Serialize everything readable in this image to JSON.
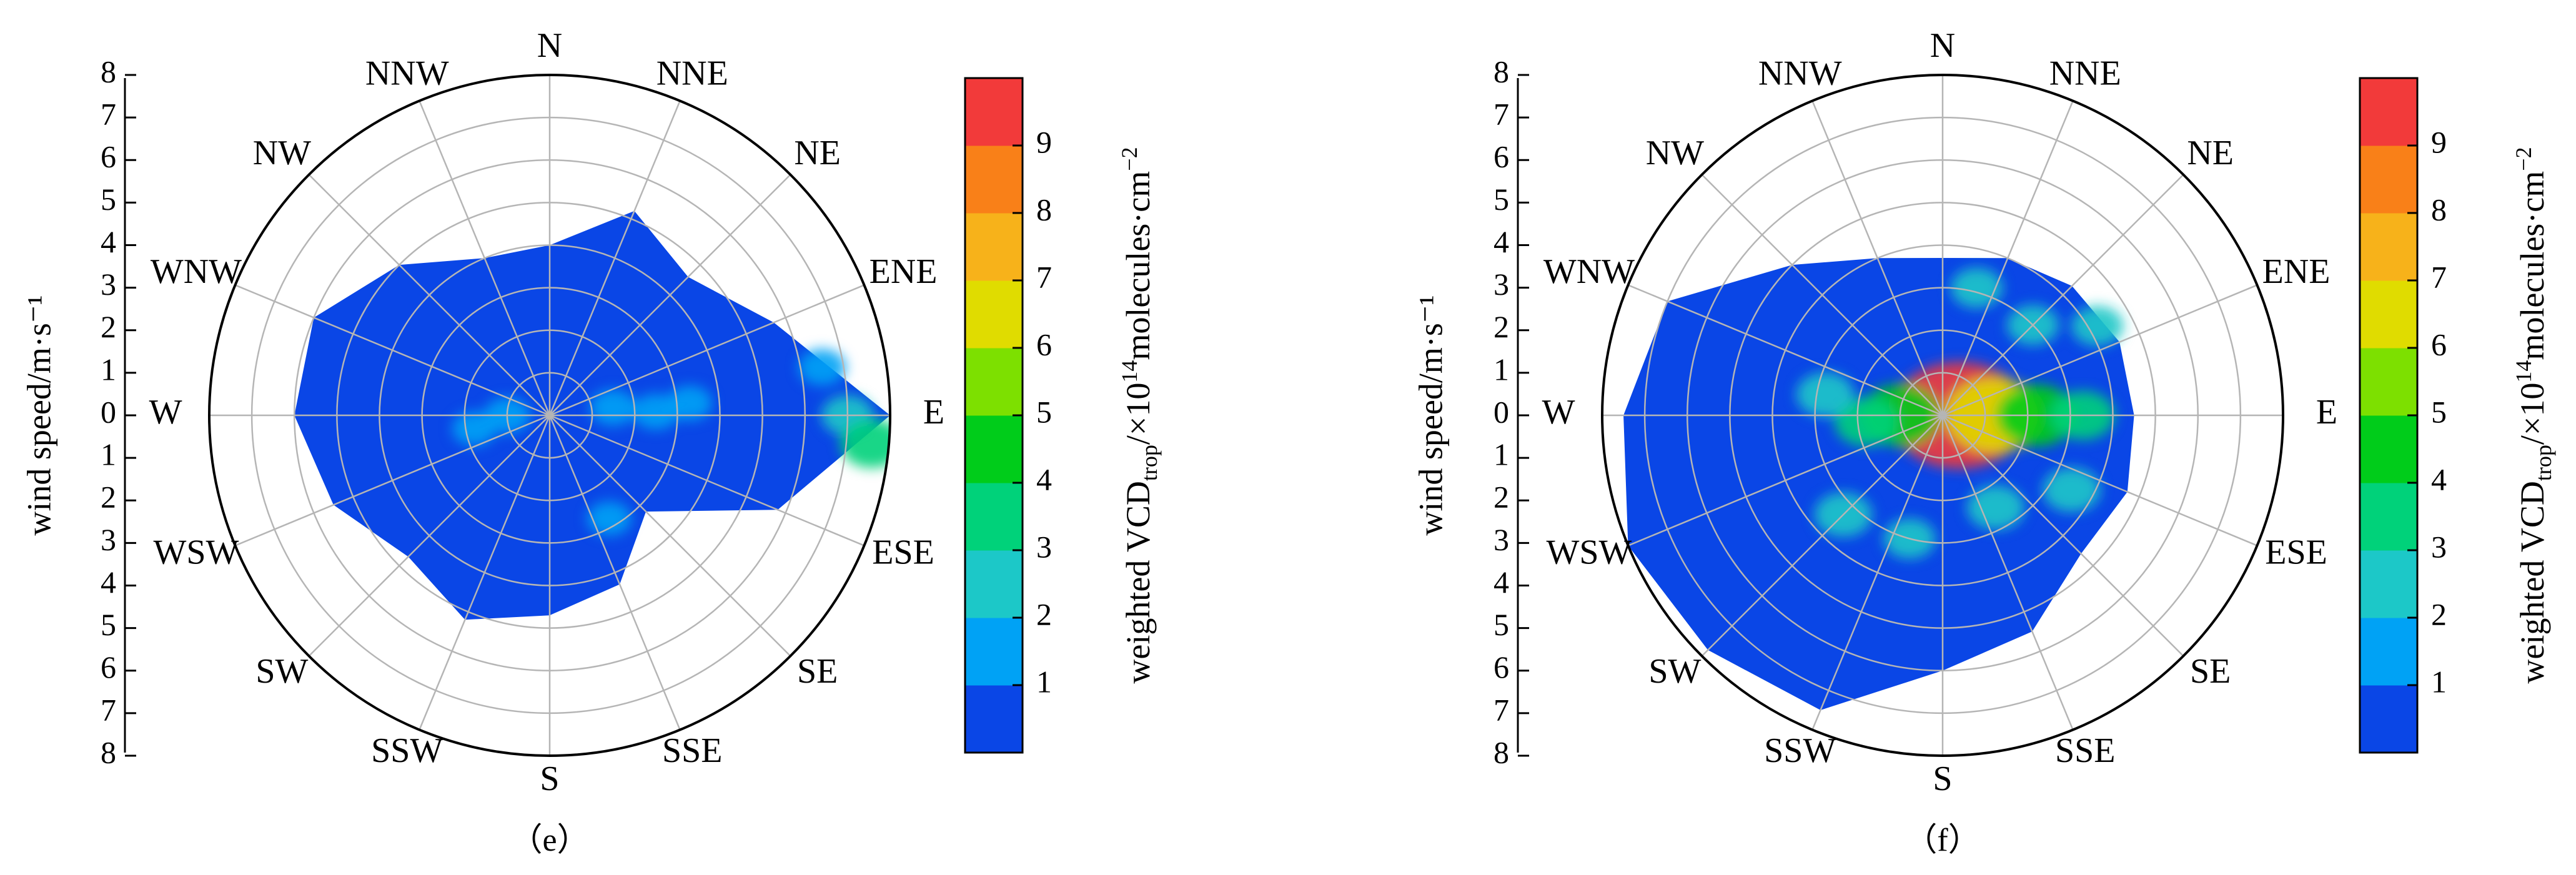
{
  "figure": {
    "panels": [
      {
        "id": "e",
        "caption": "（e）"
      },
      {
        "id": "f",
        "caption": "（f）"
      }
    ]
  },
  "chart_data": [
    {
      "type": "polar-contour",
      "panel": "（e）",
      "directions": [
        "N",
        "NNE",
        "NE",
        "ENE",
        "E",
        "ESE",
        "SE",
        "SSE",
        "S",
        "SSW",
        "SW",
        "WSW",
        "W",
        "WNW",
        "NW",
        "NNW"
      ],
      "radial_axis": {
        "label": "wind speed/m·s⁻¹",
        "range": [
          0,
          8
        ],
        "ticks": [
          0,
          1,
          2,
          3,
          4,
          5,
          6,
          7,
          8
        ]
      },
      "colorbar": {
        "label": "weighted VCDtrop/×10¹⁴molecules·cm⁻²",
        "label_parts": [
          "weighted VCD",
          "trop",
          "/×10",
          "14",
          "molecules·cm",
          "−2"
        ],
        "ticks": [
          1,
          2,
          3,
          4,
          5,
          6,
          7,
          8,
          9
        ],
        "range": [
          0,
          10
        ],
        "colors": [
          "#0a46e6",
          "#00a2f5",
          "#1cc8c8",
          "#00d27a",
          "#00cc1a",
          "#7de000",
          "#e0dc00",
          "#f7b21a",
          "#f98018",
          "#f23a3a"
        ]
      },
      "coverage": [
        {
          "direction_deg": 0,
          "speed": 4.0
        },
        {
          "direction_deg": 22.5,
          "speed": 5.2
        },
        {
          "direction_deg": 45,
          "speed": 4.6
        },
        {
          "direction_deg": 67.5,
          "speed": 5.7
        },
        {
          "direction_deg": 90,
          "speed": 8.0
        },
        {
          "direction_deg": 112.5,
          "speed": 5.8
        },
        {
          "direction_deg": 135,
          "speed": 3.2
        },
        {
          "direction_deg": 157.5,
          "speed": 4.3
        },
        {
          "direction_deg": 180,
          "speed": 4.7
        },
        {
          "direction_deg": 202.5,
          "speed": 5.2
        },
        {
          "direction_deg": 225,
          "speed": 4.7
        },
        {
          "direction_deg": 247.5,
          "speed": 5.5
        },
        {
          "direction_deg": 270,
          "speed": 6.0
        },
        {
          "direction_deg": 292.5,
          "speed": 6.0
        },
        {
          "direction_deg": 315,
          "speed": 5.0
        },
        {
          "direction_deg": 337.5,
          "speed": 4.0
        }
      ],
      "hotspots": [
        {
          "direction_deg": 90,
          "speed": 7.0,
          "value": 2.0
        },
        {
          "direction_deg": 95,
          "speed": 7.6,
          "value": 3.0
        },
        {
          "direction_deg": 80,
          "speed": 6.5,
          "value": 1.6
        },
        {
          "direction_deg": 83,
          "speed": 1.5,
          "value": 1.5
        },
        {
          "direction_deg": 88,
          "speed": 2.5,
          "value": 1.5
        },
        {
          "direction_deg": 85,
          "speed": 3.3,
          "value": 1.4
        },
        {
          "direction_deg": 270,
          "speed": 1.0,
          "value": 1.5
        },
        {
          "direction_deg": 260,
          "speed": 1.8,
          "value": 1.3
        },
        {
          "direction_deg": 150,
          "speed": 2.8,
          "value": 1.3
        }
      ]
    },
    {
      "type": "polar-contour",
      "panel": "（f）",
      "directions": [
        "N",
        "NNE",
        "NE",
        "ENE",
        "E",
        "ESE",
        "SE",
        "SSE",
        "S",
        "SSW",
        "SW",
        "WSW",
        "W",
        "WNW",
        "NW",
        "NNW"
      ],
      "radial_axis": {
        "label": "wind speed/m·s⁻¹",
        "range": [
          0,
          8
        ],
        "ticks": [
          0,
          1,
          2,
          3,
          4,
          5,
          6,
          7,
          8
        ]
      },
      "colorbar": {
        "label": "weighted VCDtrop/×10¹⁴molecules·cm⁻²",
        "label_parts": [
          "weighted VCD",
          "trop",
          "/×10",
          "14",
          "molecules·cm",
          "−2"
        ],
        "ticks": [
          1,
          2,
          3,
          4,
          5,
          6,
          7,
          8,
          9
        ],
        "range": [
          0,
          10
        ],
        "colors": [
          "#0a46e6",
          "#00a2f5",
          "#1cc8c8",
          "#00d27a",
          "#00cc1a",
          "#7de000",
          "#e0dc00",
          "#f7b21a",
          "#f98018",
          "#f23a3a"
        ]
      },
      "coverage": [
        {
          "direction_deg": 0,
          "speed": 3.7
        },
        {
          "direction_deg": 22.5,
          "speed": 4.0
        },
        {
          "direction_deg": 45,
          "speed": 4.3
        },
        {
          "direction_deg": 67.5,
          "speed": 4.5
        },
        {
          "direction_deg": 90,
          "speed": 4.5
        },
        {
          "direction_deg": 112.5,
          "speed": 4.7
        },
        {
          "direction_deg": 135,
          "speed": 4.6
        },
        {
          "direction_deg": 157.5,
          "speed": 5.5
        },
        {
          "direction_deg": 180,
          "speed": 6.0
        },
        {
          "direction_deg": 202.5,
          "speed": 7.5
        },
        {
          "direction_deg": 225,
          "speed": 7.8
        },
        {
          "direction_deg": 247.5,
          "speed": 8.0
        },
        {
          "direction_deg": 270,
          "speed": 7.5
        },
        {
          "direction_deg": 292.5,
          "speed": 7.0
        },
        {
          "direction_deg": 315,
          "speed": 5.0
        },
        {
          "direction_deg": 337.5,
          "speed": 4.0
        }
      ],
      "hotspots": [
        {
          "direction_deg": 90,
          "speed": 0.4,
          "value": 9.6
        },
        {
          "direction_deg": 90,
          "speed": 1.2,
          "value": 6.0
        },
        {
          "direction_deg": 90,
          "speed": 2.2,
          "value": 4.5
        },
        {
          "direction_deg": 90,
          "speed": 3.3,
          "value": 3.0
        },
        {
          "direction_deg": 270,
          "speed": 1.0,
          "value": 4.5
        },
        {
          "direction_deg": 265,
          "speed": 1.8,
          "value": 3.0
        },
        {
          "direction_deg": 280,
          "speed": 2.8,
          "value": 2.5
        },
        {
          "direction_deg": 120,
          "speed": 3.5,
          "value": 2.5
        },
        {
          "direction_deg": 150,
          "speed": 2.5,
          "value": 2.5
        },
        {
          "direction_deg": 225,
          "speed": 3.3,
          "value": 2.5
        },
        {
          "direction_deg": 15,
          "speed": 3.1,
          "value": 2.0
        },
        {
          "direction_deg": 45,
          "speed": 3.0,
          "value": 2.0
        },
        {
          "direction_deg": 60,
          "speed": 4.2,
          "value": 2.0
        },
        {
          "direction_deg": 195,
          "speed": 3.0,
          "value": 2.0
        }
      ]
    }
  ]
}
